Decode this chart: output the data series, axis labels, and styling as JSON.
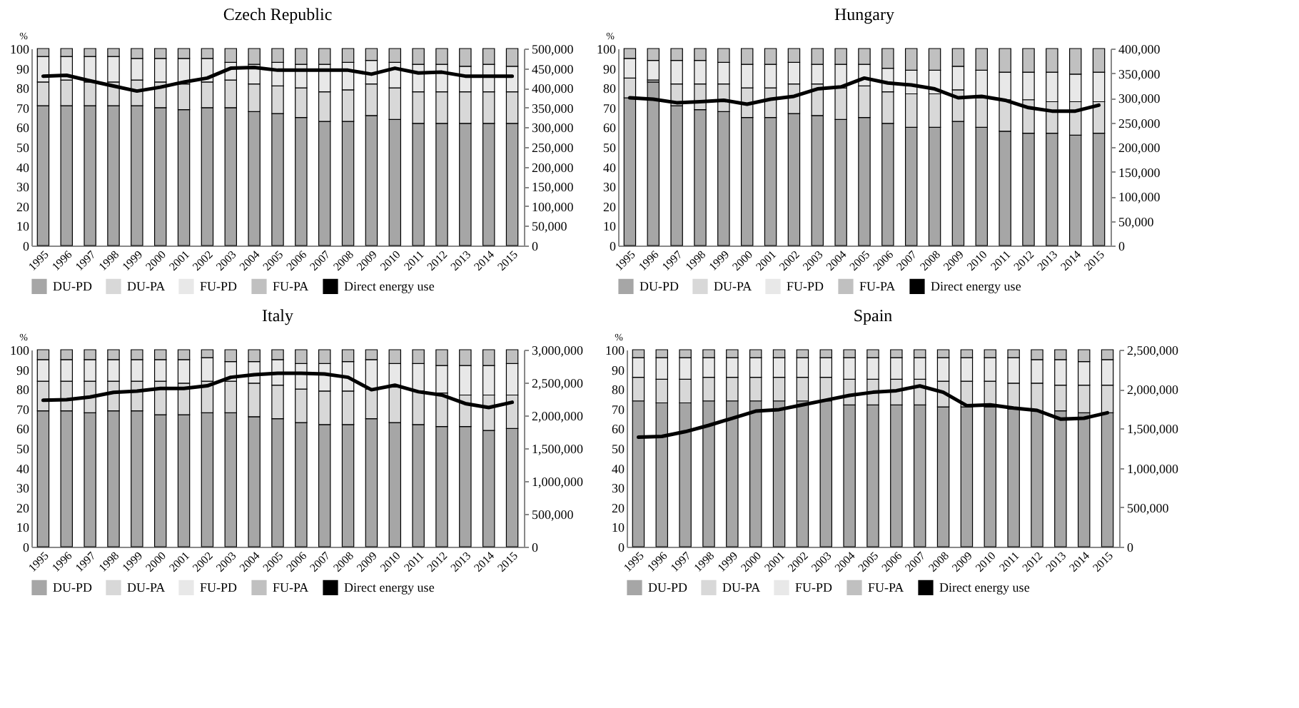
{
  "chart_data": [
    {
      "type": "bar",
      "title": "Czech Republic",
      "ylabel": "%",
      "stacked": true,
      "legend": "bottom",
      "categories": [
        "1995",
        "1996",
        "1997",
        "1998",
        "1999",
        "2000",
        "2001",
        "2002",
        "2003",
        "2004",
        "2005",
        "2006",
        "2007",
        "2008",
        "2009",
        "2010",
        "2011",
        "2012",
        "2013",
        "2014",
        "2015"
      ],
      "ylim": [
        0,
        100
      ],
      "yticks": [
        0,
        10,
        20,
        30,
        40,
        50,
        60,
        70,
        80,
        90,
        100
      ],
      "y2lim": [
        0,
        500000
      ],
      "y2ticks": [
        {
          "value": 0,
          "label": "0"
        },
        {
          "value": 50000,
          "label": "50,000"
        },
        {
          "value": 100000,
          "label": "100,000"
        },
        {
          "value": 150000,
          "label": "150,000"
        },
        {
          "value": 200000,
          "label": "200,000"
        },
        {
          "value": 250000,
          "label": "250,000"
        },
        {
          "value": 300000,
          "label": "300,000"
        },
        {
          "value": 350000,
          "label": "350,000"
        },
        {
          "value": 400000,
          "label": "400,000"
        },
        {
          "value": 450000,
          "label": "450,000"
        },
        {
          "value": 500000,
          "label": "500,000"
        }
      ],
      "series": [
        {
          "name": "DU-PD",
          "color": "#a6a6a6",
          "values": [
            71,
            71,
            71,
            71,
            71,
            70,
            69,
            70,
            70,
            68,
            67,
            65,
            63,
            63,
            66,
            64,
            62,
            62,
            62,
            62,
            62
          ]
        },
        {
          "name": "DU-PA",
          "color": "#d8d8d8",
          "values": [
            12,
            13,
            12,
            12,
            13,
            13,
            13,
            13,
            14,
            14,
            14,
            15,
            15,
            16,
            16,
            16,
            16,
            16,
            16,
            16,
            16
          ]
        },
        {
          "name": "FU-PD",
          "color": "#e8e8e8",
          "values": [
            13,
            12,
            13,
            13,
            11,
            12,
            13,
            12,
            9,
            10,
            12,
            12,
            14,
            14,
            12,
            13,
            14,
            14,
            13,
            14,
            13
          ]
        },
        {
          "name": "FU-PA",
          "color": "#c0c0c0",
          "values": [
            4,
            4,
            4,
            4,
            5,
            5,
            5,
            5,
            7,
            8,
            7,
            8,
            8,
            7,
            6,
            7,
            8,
            8,
            9,
            8,
            9
          ]
        },
        {
          "name": "Direct energy use",
          "type": "line",
          "axis": "y2",
          "color": "#000000",
          "values": [
            430000,
            432000,
            418000,
            405000,
            392000,
            402000,
            415000,
            425000,
            450000,
            452000,
            445000,
            445000,
            445000,
            445000,
            435000,
            450000,
            438000,
            440000,
            430000,
            430000,
            430000
          ]
        }
      ]
    },
    {
      "type": "bar",
      "title": "Hungary",
      "ylabel": "%",
      "stacked": true,
      "legend": "bottom",
      "categories": [
        "1995",
        "1996",
        "1997",
        "1998",
        "1999",
        "2000",
        "2001",
        "2002",
        "2003",
        "2004",
        "2005",
        "2006",
        "2007",
        "2008",
        "2009",
        "2010",
        "2011",
        "2012",
        "2013",
        "2014",
        "2015"
      ],
      "ylim": [
        0,
        100
      ],
      "yticks": [
        0,
        10,
        20,
        30,
        40,
        50,
        60,
        70,
        80,
        90,
        100
      ],
      "y2lim": [
        0,
        400000
      ],
      "y2ticks": [
        {
          "value": 0,
          "label": "0"
        },
        {
          "value": 50000,
          "label": "50,000"
        },
        {
          "value": 100000,
          "label": "100,000"
        },
        {
          "value": 150000,
          "label": "150,000"
        },
        {
          "value": 200000,
          "label": "200,000"
        },
        {
          "value": 250000,
          "label": "250,000"
        },
        {
          "value": 300000,
          "label": "300,000"
        },
        {
          "value": 350000,
          "label": "350,000"
        },
        {
          "value": 400000,
          "label": "400,000"
        }
      ],
      "series": [
        {
          "name": "DU-PD",
          "color": "#a6a6a6",
          "values": [
            75,
            83,
            71,
            69,
            68,
            65,
            65,
            67,
            66,
            64,
            65,
            62,
            60,
            60,
            63,
            60,
            58,
            57,
            57,
            56,
            57
          ]
        },
        {
          "name": "DU-PA",
          "color": "#d8d8d8",
          "values": [
            10,
            1,
            11,
            13,
            14,
            15,
            15,
            15,
            16,
            16,
            16,
            16,
            17,
            17,
            16,
            15,
            16,
            17,
            16,
            17,
            16
          ]
        },
        {
          "name": "FU-PD",
          "color": "#e8e8e8",
          "values": [
            10,
            10,
            12,
            12,
            11,
            12,
            12,
            11,
            10,
            12,
            11,
            12,
            12,
            12,
            12,
            14,
            14,
            14,
            15,
            14,
            15
          ]
        },
        {
          "name": "FU-PA",
          "color": "#c0c0c0",
          "values": [
            5,
            6,
            6,
            6,
            7,
            8,
            8,
            7,
            8,
            8,
            8,
            10,
            11,
            11,
            9,
            11,
            12,
            12,
            12,
            13,
            12
          ]
        },
        {
          "name": "Direct energy use",
          "type": "line",
          "axis": "y2",
          "color": "#000000",
          "values": [
            300000,
            297000,
            290000,
            292000,
            295000,
            287000,
            297000,
            303000,
            318000,
            322000,
            340000,
            330000,
            326000,
            318000,
            300000,
            303000,
            295000,
            280000,
            273000,
            273000,
            285000
          ]
        }
      ]
    },
    {
      "type": "bar",
      "title": "Italy",
      "ylabel": "%",
      "stacked": true,
      "legend": "bottom",
      "categories": [
        "1995",
        "1996",
        "1997",
        "1998",
        "1999",
        "2000",
        "2001",
        "2002",
        "2003",
        "2004",
        "2005",
        "2006",
        "2007",
        "2008",
        "2009",
        "2010",
        "2011",
        "2012",
        "2013",
        "2014",
        "2015"
      ],
      "ylim": [
        0,
        100
      ],
      "yticks": [
        0,
        10,
        20,
        30,
        40,
        50,
        60,
        70,
        80,
        90,
        100
      ],
      "y2lim": [
        0,
        3000000
      ],
      "y2ticks": [
        {
          "value": 0,
          "label": "0"
        },
        {
          "value": 500000,
          "label": "500,000"
        },
        {
          "value": 1000000,
          "label": "1,000,000"
        },
        {
          "value": 1500000,
          "label": "1,500,000"
        },
        {
          "value": 2000000,
          "label": "2,000,000"
        },
        {
          "value": 2500000,
          "label": "2,500,000"
        },
        {
          "value": 3000000,
          "label": "3,000,000"
        }
      ],
      "series": [
        {
          "name": "DU-PD",
          "color": "#a6a6a6",
          "values": [
            69,
            69,
            68,
            69,
            69,
            67,
            67,
            68,
            68,
            66,
            65,
            63,
            62,
            62,
            65,
            63,
            62,
            61,
            61,
            59,
            60
          ]
        },
        {
          "name": "DU-PA",
          "color": "#d8d8d8",
          "values": [
            15,
            15,
            16,
            15,
            15,
            17,
            16,
            16,
            16,
            17,
            17,
            17,
            17,
            17,
            15,
            18,
            17,
            17,
            16,
            18,
            17
          ]
        },
        {
          "name": "FU-PD",
          "color": "#e8e8e8",
          "values": [
            11,
            11,
            11,
            11,
            11,
            11,
            12,
            12,
            10,
            11,
            13,
            13,
            14,
            15,
            15,
            12,
            14,
            14,
            15,
            15,
            16
          ]
        },
        {
          "name": "FU-PA",
          "color": "#c0c0c0",
          "values": [
            5,
            5,
            5,
            5,
            5,
            5,
            5,
            4,
            6,
            6,
            5,
            7,
            7,
            6,
            5,
            7,
            7,
            8,
            8,
            8,
            7
          ]
        },
        {
          "name": "Direct energy use",
          "type": "line",
          "axis": "y2",
          "color": "#000000",
          "values": [
            2230000,
            2240000,
            2280000,
            2350000,
            2370000,
            2410000,
            2410000,
            2450000,
            2580000,
            2620000,
            2640000,
            2640000,
            2630000,
            2580000,
            2390000,
            2460000,
            2360000,
            2310000,
            2180000,
            2120000,
            2200000
          ]
        }
      ]
    },
    {
      "type": "bar",
      "title": "Spain",
      "ylabel": "%",
      "stacked": true,
      "legend": "bottom",
      "categories": [
        "1995",
        "1996",
        "1997",
        "1998",
        "1999",
        "2000",
        "2001",
        "2002",
        "2003",
        "2004",
        "2005",
        "2006",
        "2007",
        "2008",
        "2009",
        "2010",
        "2011",
        "2012",
        "2013",
        "2014",
        "2015"
      ],
      "ylim": [
        0,
        100
      ],
      "yticks": [
        0,
        10,
        20,
        30,
        40,
        50,
        60,
        70,
        80,
        90,
        100
      ],
      "y2lim": [
        0,
        2500000
      ],
      "y2ticks": [
        {
          "value": 0,
          "label": "0"
        },
        {
          "value": 500000,
          "label": "500,000"
        },
        {
          "value": 1000000,
          "label": "1,000,000"
        },
        {
          "value": 1500000,
          "label": "1,500,000"
        },
        {
          "value": 2000000,
          "label": "2,000,000"
        },
        {
          "value": 2500000,
          "label": "2,500,000"
        }
      ],
      "series": [
        {
          "name": "DU-PD",
          "color": "#a6a6a6",
          "values": [
            74,
            73,
            73,
            74,
            74,
            74,
            74,
            74,
            74,
            72,
            72,
            72,
            72,
            71,
            71,
            71,
            70,
            69,
            69,
            68,
            68
          ]
        },
        {
          "name": "DU-PA",
          "color": "#d8d8d8",
          "values": [
            12,
            12,
            12,
            12,
            12,
            12,
            12,
            12,
            12,
            13,
            13,
            13,
            13,
            13,
            13,
            13,
            13,
            14,
            13,
            14,
            14
          ]
        },
        {
          "name": "FU-PD",
          "color": "#e8e8e8",
          "values": [
            10,
            11,
            11,
            10,
            10,
            10,
            10,
            10,
            10,
            11,
            11,
            11,
            11,
            12,
            12,
            12,
            13,
            12,
            13,
            12,
            13
          ]
        },
        {
          "name": "FU-PA",
          "color": "#c0c0c0",
          "values": [
            4,
            4,
            4,
            4,
            4,
            4,
            4,
            4,
            4,
            4,
            4,
            4,
            4,
            4,
            4,
            4,
            4,
            5,
            5,
            6,
            5
          ]
        },
        {
          "name": "Direct energy use",
          "type": "line",
          "axis": "y2",
          "color": "#000000",
          "values": [
            1390000,
            1400000,
            1460000,
            1540000,
            1630000,
            1720000,
            1740000,
            1800000,
            1860000,
            1920000,
            1960000,
            1980000,
            2040000,
            1960000,
            1790000,
            1800000,
            1760000,
            1730000,
            1620000,
            1630000,
            1700000
          ]
        }
      ]
    }
  ]
}
